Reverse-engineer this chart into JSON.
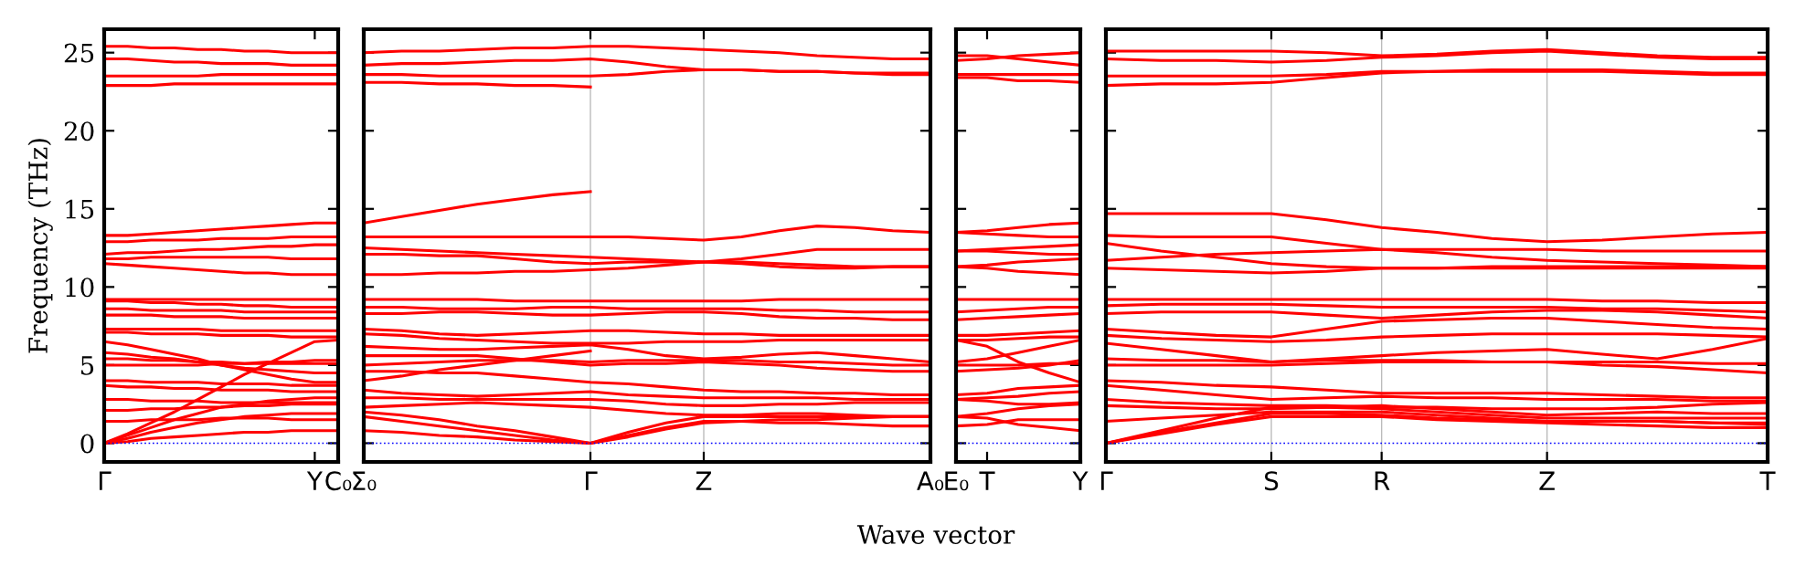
{
  "chart_data": [
    {
      "type": "line",
      "ylabel": "Frequency (THz)",
      "color": "#ff0000",
      "line_style": "solid",
      "marker": "none",
      "categories": [
        "Γ",
        null,
        null,
        null,
        null,
        null,
        null,
        null,
        null,
        "Y",
        "C₀"
      ],
      "ylim": [
        -1.2,
        26.5
      ],
      "yticks": [
        0,
        5,
        10,
        15,
        20,
        25
      ],
      "ref_lines": [
        {
          "axis": "y",
          "value": 0,
          "color": "#0000ff",
          "line_style": "dotted"
        }
      ],
      "series": [
        {
          "values": [
            25.4,
            25.4,
            25.3,
            25.3,
            25.2,
            25.2,
            25.1,
            25.1,
            25.0,
            25.0,
            25.0
          ]
        },
        {
          "values": [
            24.6,
            24.6,
            24.5,
            24.4,
            24.4,
            24.3,
            24.3,
            24.3,
            24.2,
            24.2,
            24.2
          ]
        },
        {
          "values": [
            23.5,
            23.5,
            23.5,
            23.5,
            23.5,
            23.6,
            23.6,
            23.6,
            23.6,
            23.6,
            23.6
          ]
        },
        {
          "values": [
            22.9,
            22.9,
            22.9,
            23.0,
            23.0,
            23.0,
            23.0,
            23.0,
            23.0,
            23.0,
            23.0
          ]
        },
        {
          "values": [
            13.3,
            13.3,
            13.4,
            13.5,
            13.6,
            13.7,
            13.8,
            13.9,
            14.0,
            14.1,
            14.1
          ]
        },
        {
          "values": [
            12.9,
            12.9,
            13.0,
            13.0,
            13.0,
            13.1,
            13.1,
            13.1,
            13.2,
            13.2,
            13.2
          ]
        },
        {
          "values": [
            12.1,
            12.2,
            12.2,
            12.3,
            12.4,
            12.4,
            12.5,
            12.6,
            12.6,
            12.7,
            12.7
          ]
        },
        {
          "values": [
            11.8,
            11.8,
            11.9,
            11.9,
            11.9,
            11.9,
            11.9,
            11.9,
            11.8,
            11.8,
            11.8
          ]
        },
        {
          "values": [
            11.5,
            11.4,
            11.3,
            11.2,
            11.1,
            11.0,
            10.9,
            10.9,
            10.8,
            10.8,
            10.8
          ]
        },
        {
          "values": [
            9.2,
            9.2,
            9.2,
            9.2,
            9.2,
            9.2,
            9.2,
            9.2,
            9.2,
            9.2,
            9.2
          ]
        },
        {
          "values": [
            9.1,
            9.1,
            9.0,
            9.0,
            8.9,
            8.9,
            8.8,
            8.8,
            8.7,
            8.7,
            8.7
          ]
        },
        {
          "values": [
            8.6,
            8.6,
            8.5,
            8.5,
            8.5,
            8.5,
            8.4,
            8.4,
            8.4,
            8.4,
            8.4
          ]
        },
        {
          "values": [
            8.2,
            8.2,
            8.2,
            8.1,
            8.1,
            8.1,
            8.0,
            8.0,
            8.0,
            8.0,
            8.0
          ]
        },
        {
          "values": [
            7.3,
            7.3,
            7.3,
            7.3,
            7.3,
            7.2,
            7.2,
            7.2,
            7.2,
            7.2,
            7.2
          ]
        },
        {
          "values": [
            7.1,
            7.1,
            7.0,
            7.0,
            7.0,
            6.9,
            6.9,
            6.9,
            6.8,
            6.8,
            6.8
          ]
        },
        {
          "values": [
            6.5,
            6.3,
            6.0,
            5.7,
            5.4,
            5.0,
            4.7,
            4.4,
            4.1,
            3.9,
            3.9
          ]
        },
        {
          "values": [
            5.8,
            5.7,
            5.5,
            5.4,
            5.2,
            5.0,
            4.8,
            4.7,
            4.6,
            4.5,
            4.5
          ]
        },
        {
          "values": [
            5.4,
            5.4,
            5.3,
            5.3,
            5.2,
            5.2,
            5.1,
            5.1,
            5.1,
            5.1,
            5.1
          ]
        },
        {
          "values": [
            5.0,
            5.0,
            5.0,
            5.0,
            5.0,
            5.1,
            5.1,
            5.2,
            5.2,
            5.3,
            5.3
          ]
        },
        {
          "values": [
            4.0,
            4.0,
            3.9,
            3.9,
            3.9,
            3.8,
            3.8,
            3.8,
            3.7,
            3.7,
            3.7
          ]
        },
        {
          "values": [
            3.7,
            3.6,
            3.6,
            3.5,
            3.5,
            3.4,
            3.4,
            3.4,
            3.3,
            3.3,
            3.3
          ]
        },
        {
          "values": [
            2.8,
            2.8,
            2.7,
            2.7,
            2.7,
            2.6,
            2.6,
            2.6,
            2.6,
            2.6,
            2.6
          ]
        },
        {
          "values": [
            2.1,
            2.1,
            2.2,
            2.2,
            2.3,
            2.3,
            2.4,
            2.4,
            2.5,
            2.5,
            2.5
          ]
        },
        {
          "values": [
            1.4,
            1.4,
            1.5,
            1.5,
            1.5,
            1.6,
            1.6,
            1.6,
            1.5,
            1.5,
            1.5
          ]
        },
        {
          "values": [
            0,
            0.6,
            1.3,
            2.0,
            2.8,
            3.6,
            4.4,
            5.1,
            5.8,
            6.5,
            6.6
          ]
        },
        {
          "values": [
            0,
            0.5,
            1.0,
            1.5,
            1.9,
            2.3,
            2.5,
            2.7,
            2.8,
            2.9,
            2.9
          ]
        },
        {
          "values": [
            0,
            0.3,
            0.7,
            1.0,
            1.3,
            1.5,
            1.7,
            1.8,
            1.9,
            1.9,
            1.9
          ]
        },
        {
          "values": [
            0,
            0.1,
            0.3,
            0.4,
            0.5,
            0.6,
            0.7,
            0.7,
            0.8,
            0.8,
            0.8
          ]
        }
      ]
    },
    {
      "type": "line",
      "xlabel": "Wave vector",
      "color": "#ff0000",
      "grid": "x",
      "line_style": "solid",
      "marker": "none",
      "tick_labels": "x",
      "categories": [
        "Σ₀",
        null,
        null,
        null,
        null,
        null,
        "Γ",
        null,
        null,
        "Z",
        null,
        null,
        null,
        null,
        null,
        "A₀"
      ],
      "ylim": [
        -1.2,
        26.5
      ],
      "yticks": [
        0,
        5,
        10,
        15,
        20,
        25
      ],
      "ref_lines": [
        {
          "axis": "y",
          "value": 0,
          "color": "#0000ff",
          "line_style": "dotted"
        }
      ],
      "series": [
        {
          "values": [
            25.0,
            25.1,
            25.1,
            25.2,
            25.3,
            25.3,
            25.4,
            25.4,
            25.3,
            25.2,
            25.1,
            25.0,
            24.8,
            24.7,
            24.6,
            24.6
          ]
        },
        {
          "values": [
            24.2,
            24.3,
            24.3,
            24.4,
            24.5,
            24.5,
            24.6,
            24.4,
            24.1,
            23.9,
            23.9,
            23.8,
            23.8,
            23.7,
            23.7,
            23.7
          ]
        },
        {
          "values": [
            23.6,
            23.6,
            23.5,
            23.5,
            23.5,
            23.5,
            23.5,
            23.6,
            23.8,
            23.9,
            23.9,
            23.8,
            23.8,
            23.7,
            23.6,
            23.6
          ]
        },
        {
          "values": [
            23.1,
            23.1,
            23.0,
            23.0,
            22.9,
            22.9,
            22.8,
            null,
            null,
            null,
            null,
            null,
            null,
            null,
            null,
            null
          ]
        },
        {
          "values": [
            14.1,
            14.5,
            14.9,
            15.3,
            15.6,
            15.9,
            16.1,
            null,
            null,
            null,
            null,
            null,
            null,
            null,
            null,
            null
          ]
        },
        {
          "values": [
            13.2,
            13.2,
            13.2,
            13.2,
            13.2,
            13.2,
            13.2,
            13.2,
            13.1,
            13.0,
            13.2,
            13.6,
            13.9,
            13.8,
            13.6,
            13.5
          ]
        },
        {
          "values": [
            12.5,
            12.4,
            12.3,
            12.2,
            12.1,
            12.0,
            11.9,
            11.8,
            11.7,
            11.6,
            11.8,
            12.1,
            12.4,
            12.4,
            12.4,
            12.4
          ]
        },
        {
          "values": [
            12.1,
            12.1,
            12.0,
            12.0,
            11.8,
            11.6,
            11.5,
            11.6,
            11.6,
            11.6,
            11.5,
            11.3,
            11.2,
            11.2,
            11.3,
            11.3
          ]
        },
        {
          "values": [
            10.8,
            10.8,
            10.9,
            10.9,
            11.0,
            11.0,
            11.1,
            11.2,
            11.4,
            11.6,
            11.6,
            11.5,
            11.4,
            11.3,
            11.3,
            11.3
          ]
        },
        {
          "values": [
            9.2,
            9.2,
            9.2,
            9.2,
            9.1,
            9.1,
            9.1,
            9.1,
            9.1,
            9.1,
            9.1,
            9.2,
            9.2,
            9.2,
            9.2,
            9.2
          ]
        },
        {
          "values": [
            8.7,
            8.7,
            8.6,
            8.6,
            8.6,
            8.7,
            8.7,
            8.6,
            8.6,
            8.6,
            8.6,
            8.5,
            8.5,
            8.4,
            8.4,
            8.4
          ]
        },
        {
          "values": [
            8.3,
            8.3,
            8.4,
            8.4,
            8.3,
            8.2,
            8.2,
            8.3,
            8.4,
            8.4,
            8.3,
            8.1,
            8.0,
            8.0,
            7.9,
            7.9
          ]
        },
        {
          "values": [
            7.3,
            7.2,
            7.0,
            6.9,
            7.0,
            7.1,
            7.2,
            7.2,
            7.1,
            7.0,
            7.0,
            6.9,
            6.9,
            6.9,
            6.9,
            6.9
          ]
        },
        {
          "values": [
            7.0,
            6.9,
            6.7,
            6.6,
            6.5,
            6.4,
            6.4,
            6.4,
            6.5,
            6.5,
            6.5,
            6.6,
            6.6,
            6.6,
            6.6,
            6.6
          ]
        },
        {
          "values": [
            6.2,
            6.1,
            6.0,
            6.0,
            6.1,
            6.2,
            6.3,
            6.0,
            5.6,
            5.4,
            5.5,
            5.7,
            5.8,
            5.6,
            5.4,
            5.2
          ]
        },
        {
          "values": [
            5.6,
            5.6,
            5.6,
            5.6,
            5.4,
            5.2,
            5.0,
            5.1,
            5.1,
            5.2,
            5.1,
            5.0,
            4.8,
            4.7,
            4.6,
            4.6
          ]
        },
        {
          "values": [
            5.0,
            5.1,
            5.2,
            5.3,
            5.3,
            5.3,
            5.2,
            5.3,
            5.3,
            5.3,
            5.3,
            5.2,
            5.2,
            5.1,
            5.0,
            5.0
          ]
        },
        {
          "values": [
            4.6,
            4.6,
            4.5,
            4.5,
            4.3,
            4.1,
            3.9,
            3.8,
            3.6,
            3.4,
            3.3,
            3.3,
            3.2,
            3.2,
            3.1,
            3.1
          ]
        },
        {
          "values": [
            4.0,
            4.3,
            4.7,
            5.0,
            5.3,
            5.6,
            5.9,
            null,
            null,
            null,
            null,
            null,
            null,
            null,
            null,
            null
          ]
        },
        {
          "values": [
            3.4,
            3.2,
            3.1,
            3.0,
            3.1,
            3.2,
            3.3,
            3.1,
            3.0,
            2.9,
            2.9,
            2.9,
            2.9,
            2.8,
            2.8,
            2.8
          ]
        },
        {
          "values": [
            2.9,
            2.9,
            2.8,
            2.8,
            2.8,
            2.8,
            2.8,
            2.7,
            2.5,
            2.4,
            2.4,
            2.5,
            2.5,
            2.6,
            2.6,
            2.6
          ]
        },
        {
          "values": [
            2.3,
            2.4,
            2.5,
            2.6,
            2.5,
            2.4,
            2.3,
            2.1,
            1.9,
            1.8,
            1.8,
            1.9,
            1.9,
            1.8,
            1.7,
            1.7
          ]
        },
        {
          "values": [
            2.0,
            1.8,
            1.5,
            1.1,
            0.8,
            0.4,
            0,
            0.7,
            1.3,
            1.7,
            1.7,
            1.7,
            1.7,
            1.7,
            1.7,
            1.7
          ]
        },
        {
          "values": [
            1.7,
            1.4,
            1.1,
            0.8,
            0.5,
            0.2,
            0,
            0.5,
            1.0,
            1.4,
            1.4,
            1.3,
            1.3,
            1.2,
            1.1,
            1.1
          ]
        },
        {
          "values": [
            0.8,
            0.7,
            0.5,
            0.4,
            0.2,
            0.1,
            0,
            0.4,
            0.9,
            1.3,
            1.4,
            1.5,
            1.5,
            1.6,
            1.7,
            1.7
          ]
        }
      ]
    },
    {
      "type": "line",
      "color": "#ff0000",
      "line_style": "solid",
      "marker": "none",
      "tick_labels": "x",
      "categories": [
        "E₀",
        "T",
        null,
        null,
        "Y"
      ],
      "ylim": [
        -1.2,
        26.5
      ],
      "yticks": [
        0,
        5,
        10,
        15,
        20,
        25
      ],
      "ref_lines": [
        {
          "axis": "y",
          "value": 0,
          "color": "#0000ff",
          "line_style": "dotted"
        }
      ],
      "series": [
        {
          "values": [
            24.8,
            24.8,
            24.6,
            24.4,
            24.2
          ]
        },
        {
          "values": [
            24.5,
            24.6,
            24.8,
            24.9,
            25.0
          ]
        },
        {
          "values": [
            23.6,
            23.6,
            23.6,
            23.6,
            23.6
          ]
        },
        {
          "values": [
            23.4,
            23.4,
            23.2,
            23.2,
            23.1
          ]
        },
        {
          "values": [
            13.5,
            13.6,
            13.8,
            14.0,
            14.1
          ]
        },
        {
          "values": [
            13.5,
            13.4,
            13.3,
            13.2,
            13.2
          ]
        },
        {
          "values": [
            12.3,
            12.4,
            12.5,
            12.6,
            12.7
          ]
        },
        {
          "values": [
            12.3,
            12.3,
            12.2,
            12.1,
            12.1
          ]
        },
        {
          "values": [
            11.3,
            11.4,
            11.6,
            11.7,
            11.8
          ]
        },
        {
          "values": [
            11.3,
            11.2,
            11.0,
            10.9,
            10.8
          ]
        },
        {
          "values": [
            9.2,
            9.2,
            9.2,
            9.2,
            9.2
          ]
        },
        {
          "values": [
            8.4,
            8.5,
            8.6,
            8.7,
            8.7
          ]
        },
        {
          "values": [
            7.9,
            8.0,
            8.1,
            8.2,
            8.3
          ]
        },
        {
          "values": [
            6.9,
            6.9,
            7.0,
            7.1,
            7.2
          ]
        },
        {
          "values": [
            6.6,
            6.6,
            6.7,
            6.8,
            6.8
          ]
        },
        {
          "values": [
            6.6,
            6.2,
            5.2,
            4.5,
            3.9
          ]
        },
        {
          "values": [
            5.2,
            5.4,
            5.8,
            6.2,
            6.6
          ]
        },
        {
          "values": [
            5.0,
            5.0,
            5.0,
            5.1,
            5.1
          ]
        },
        {
          "values": [
            4.6,
            4.7,
            4.8,
            5.0,
            5.3
          ]
        },
        {
          "values": [
            3.1,
            3.2,
            3.5,
            3.6,
            3.7
          ]
        },
        {
          "values": [
            2.8,
            2.9,
            3.0,
            3.2,
            3.3
          ]
        },
        {
          "values": [
            2.8,
            2.7,
            2.5,
            2.5,
            2.6
          ]
        },
        {
          "values": [
            1.7,
            1.9,
            2.2,
            2.4,
            2.5
          ]
        },
        {
          "values": [
            1.1,
            1.2,
            1.5,
            1.5,
            1.5
          ]
        },
        {
          "values": [
            1.7,
            1.6,
            1.2,
            1.0,
            0.8
          ]
        }
      ]
    },
    {
      "type": "line",
      "color": "#ff0000",
      "grid": "x",
      "line_style": "solid",
      "marker": "none",
      "tick_labels": "x",
      "categories": [
        "Γ",
        null,
        null,
        "S",
        null,
        "R",
        null,
        null,
        "Z",
        null,
        null,
        null,
        "T"
      ],
      "ylim": [
        -1.2,
        26.5
      ],
      "yticks": [
        0,
        5,
        10,
        15,
        20,
        25
      ],
      "ref_lines": [
        {
          "axis": "y",
          "value": 0,
          "color": "#0000ff",
          "line_style": "dotted"
        }
      ],
      "series": [
        {
          "values": [
            25.1,
            25.1,
            25.1,
            25.1,
            25.0,
            24.8,
            24.9,
            25.1,
            25.2,
            25.0,
            24.8,
            24.7,
            24.7
          ]
        },
        {
          "values": [
            24.6,
            24.5,
            24.5,
            24.4,
            24.5,
            24.7,
            24.8,
            25.0,
            25.1,
            24.9,
            24.7,
            24.6,
            24.6
          ]
        },
        {
          "values": [
            23.5,
            23.5,
            23.5,
            23.5,
            23.6,
            23.8,
            23.8,
            23.9,
            23.9,
            23.9,
            23.8,
            23.7,
            23.7
          ]
        },
        {
          "values": [
            22.9,
            23.0,
            23.0,
            23.1,
            23.4,
            23.7,
            23.8,
            23.8,
            23.8,
            23.8,
            23.7,
            23.6,
            23.6
          ]
        },
        {
          "values": [
            14.7,
            14.7,
            14.7,
            14.7,
            14.3,
            13.8,
            13.5,
            13.1,
            12.9,
            13.0,
            13.2,
            13.4,
            13.5
          ]
        },
        {
          "values": [
            13.3,
            13.2,
            13.2,
            13.2,
            12.8,
            12.4,
            12.4,
            12.4,
            12.4,
            12.3,
            12.3,
            12.3,
            12.3
          ]
        },
        {
          "values": [
            11.7,
            11.9,
            12.1,
            12.2,
            12.3,
            12.4,
            12.2,
            11.9,
            11.7,
            11.6,
            11.5,
            11.4,
            11.3
          ]
        },
        {
          "values": [
            11.2,
            11.1,
            11.0,
            10.9,
            11.0,
            11.2,
            11.2,
            11.3,
            11.3,
            11.3,
            11.3,
            11.3,
            11.3
          ]
        },
        {
          "values": [
            12.8,
            12.3,
            11.9,
            11.5,
            11.3,
            11.2,
            11.2,
            11.2,
            11.2,
            11.2,
            11.2,
            11.2,
            11.2
          ]
        },
        {
          "values": [
            9.2,
            9.2,
            9.2,
            9.2,
            9.2,
            9.2,
            9.2,
            9.2,
            9.2,
            9.1,
            9.1,
            9.0,
            9.0
          ]
        },
        {
          "values": [
            8.8,
            8.9,
            8.9,
            8.9,
            8.8,
            8.7,
            8.7,
            8.7,
            8.7,
            8.6,
            8.6,
            8.5,
            8.4
          ]
        },
        {
          "values": [
            8.3,
            8.4,
            8.4,
            8.4,
            8.2,
            8.0,
            8.2,
            8.4,
            8.5,
            8.5,
            8.4,
            8.2,
            8.0
          ]
        },
        {
          "values": [
            7.3,
            7.1,
            6.9,
            6.8,
            7.3,
            7.8,
            7.9,
            8.0,
            8.0,
            7.8,
            7.6,
            7.4,
            7.3
          ]
        },
        {
          "values": [
            6.9,
            6.7,
            6.6,
            6.5,
            6.6,
            6.8,
            6.9,
            7.0,
            7.0,
            7.0,
            7.0,
            6.9,
            6.8
          ]
        },
        {
          "values": [
            6.4,
            6.0,
            5.6,
            5.2,
            5.4,
            5.6,
            5.8,
            5.9,
            6.0,
            5.7,
            5.4,
            6.0,
            6.7
          ]
        },
        {
          "values": [
            5.4,
            5.3,
            5.3,
            5.2,
            5.3,
            5.3,
            5.3,
            5.2,
            5.2,
            5.2,
            5.2,
            5.1,
            5.1
          ]
        },
        {
          "values": [
            5.0,
            5.0,
            5.0,
            5.0,
            5.1,
            5.2,
            5.2,
            5.2,
            5.2,
            5.0,
            4.9,
            4.7,
            4.5
          ]
        },
        {
          "values": [
            4.0,
            3.9,
            3.7,
            3.6,
            3.4,
            3.2,
            3.2,
            3.2,
            3.2,
            3.1,
            3.0,
            2.9,
            2.9
          ]
        },
        {
          "values": [
            3.7,
            3.4,
            3.1,
            2.8,
            2.9,
            3.0,
            2.9,
            2.9,
            2.8,
            2.8,
            2.8,
            2.7,
            2.7
          ]
        },
        {
          "values": [
            2.8,
            2.6,
            2.5,
            2.4,
            2.4,
            2.3,
            2.3,
            2.2,
            2.2,
            2.2,
            2.3,
            2.5,
            2.6
          ]
        },
        {
          "values": [
            2.4,
            2.3,
            2.2,
            2.2,
            2.3,
            2.4,
            2.2,
            2.0,
            1.8,
            1.9,
            2.0,
            1.9,
            1.9
          ]
        },
        {
          "values": [
            1.4,
            1.6,
            1.8,
            2.0,
            2.0,
            2.0,
            1.8,
            1.6,
            1.4,
            1.4,
            1.4,
            1.3,
            1.2
          ]
        },
        {
          "values": [
            0,
            0.8,
            1.6,
            2.3,
            2.3,
            2.2,
            2.0,
            1.8,
            1.6,
            1.6,
            1.6,
            1.6,
            1.6
          ]
        },
        {
          "values": [
            0,
            0.7,
            1.3,
            1.9,
            1.9,
            1.8,
            1.6,
            1.5,
            1.4,
            1.4,
            1.4,
            1.3,
            1.3
          ]
        },
        {
          "values": [
            0,
            0.6,
            1.2,
            1.7,
            1.7,
            1.7,
            1.5,
            1.4,
            1.3,
            1.2,
            1.1,
            1.0,
            1.0
          ]
        }
      ]
    }
  ]
}
